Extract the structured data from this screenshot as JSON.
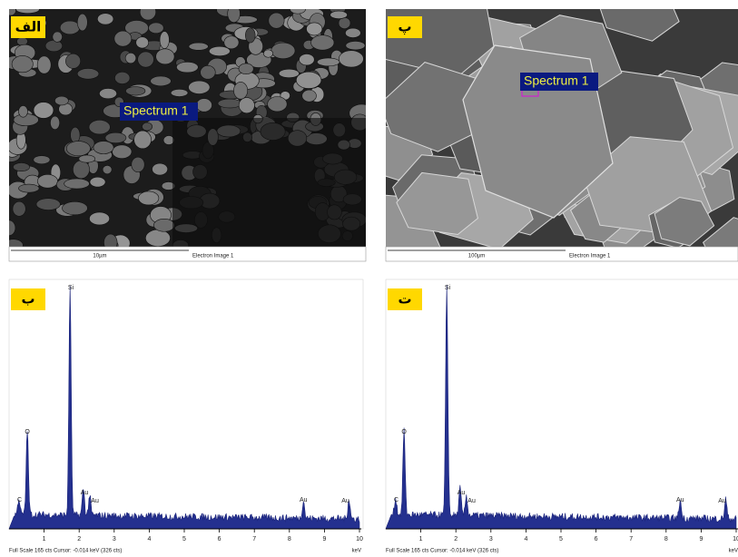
{
  "panels": [
    {
      "label": "الف",
      "overlay": "Spectrum 1",
      "scale_bar": "10µm",
      "caption": "Electron Image 1"
    },
    {
      "label": "پ",
      "overlay": "Spectrum 1",
      "scale_bar": "100µm",
      "caption": "Electron Image 1"
    },
    {
      "label": "ب",
      "peaks": [
        "C",
        "O",
        "Si",
        "Au",
        "Au",
        "Au",
        "Au"
      ],
      "x_ticks": [
        "1",
        "2",
        "3",
        "4",
        "5",
        "6",
        "7",
        "8",
        "9",
        "10"
      ],
      "x_unit": "keV",
      "footer": "Full Scale 165 cts  Cursor: -0.014 keV (326 cts)"
    },
    {
      "label": "ت",
      "peaks": [
        "C",
        "O",
        "Si",
        "Au",
        "Au",
        "Au",
        "Au"
      ],
      "x_ticks": [
        "1",
        "2",
        "3",
        "4",
        "5",
        "6",
        "7",
        "8",
        "9",
        "10"
      ],
      "x_unit": "keV",
      "footer": "Full Scale 165 cts  Cursor: -0.014 keV (326 cts)"
    }
  ]
}
